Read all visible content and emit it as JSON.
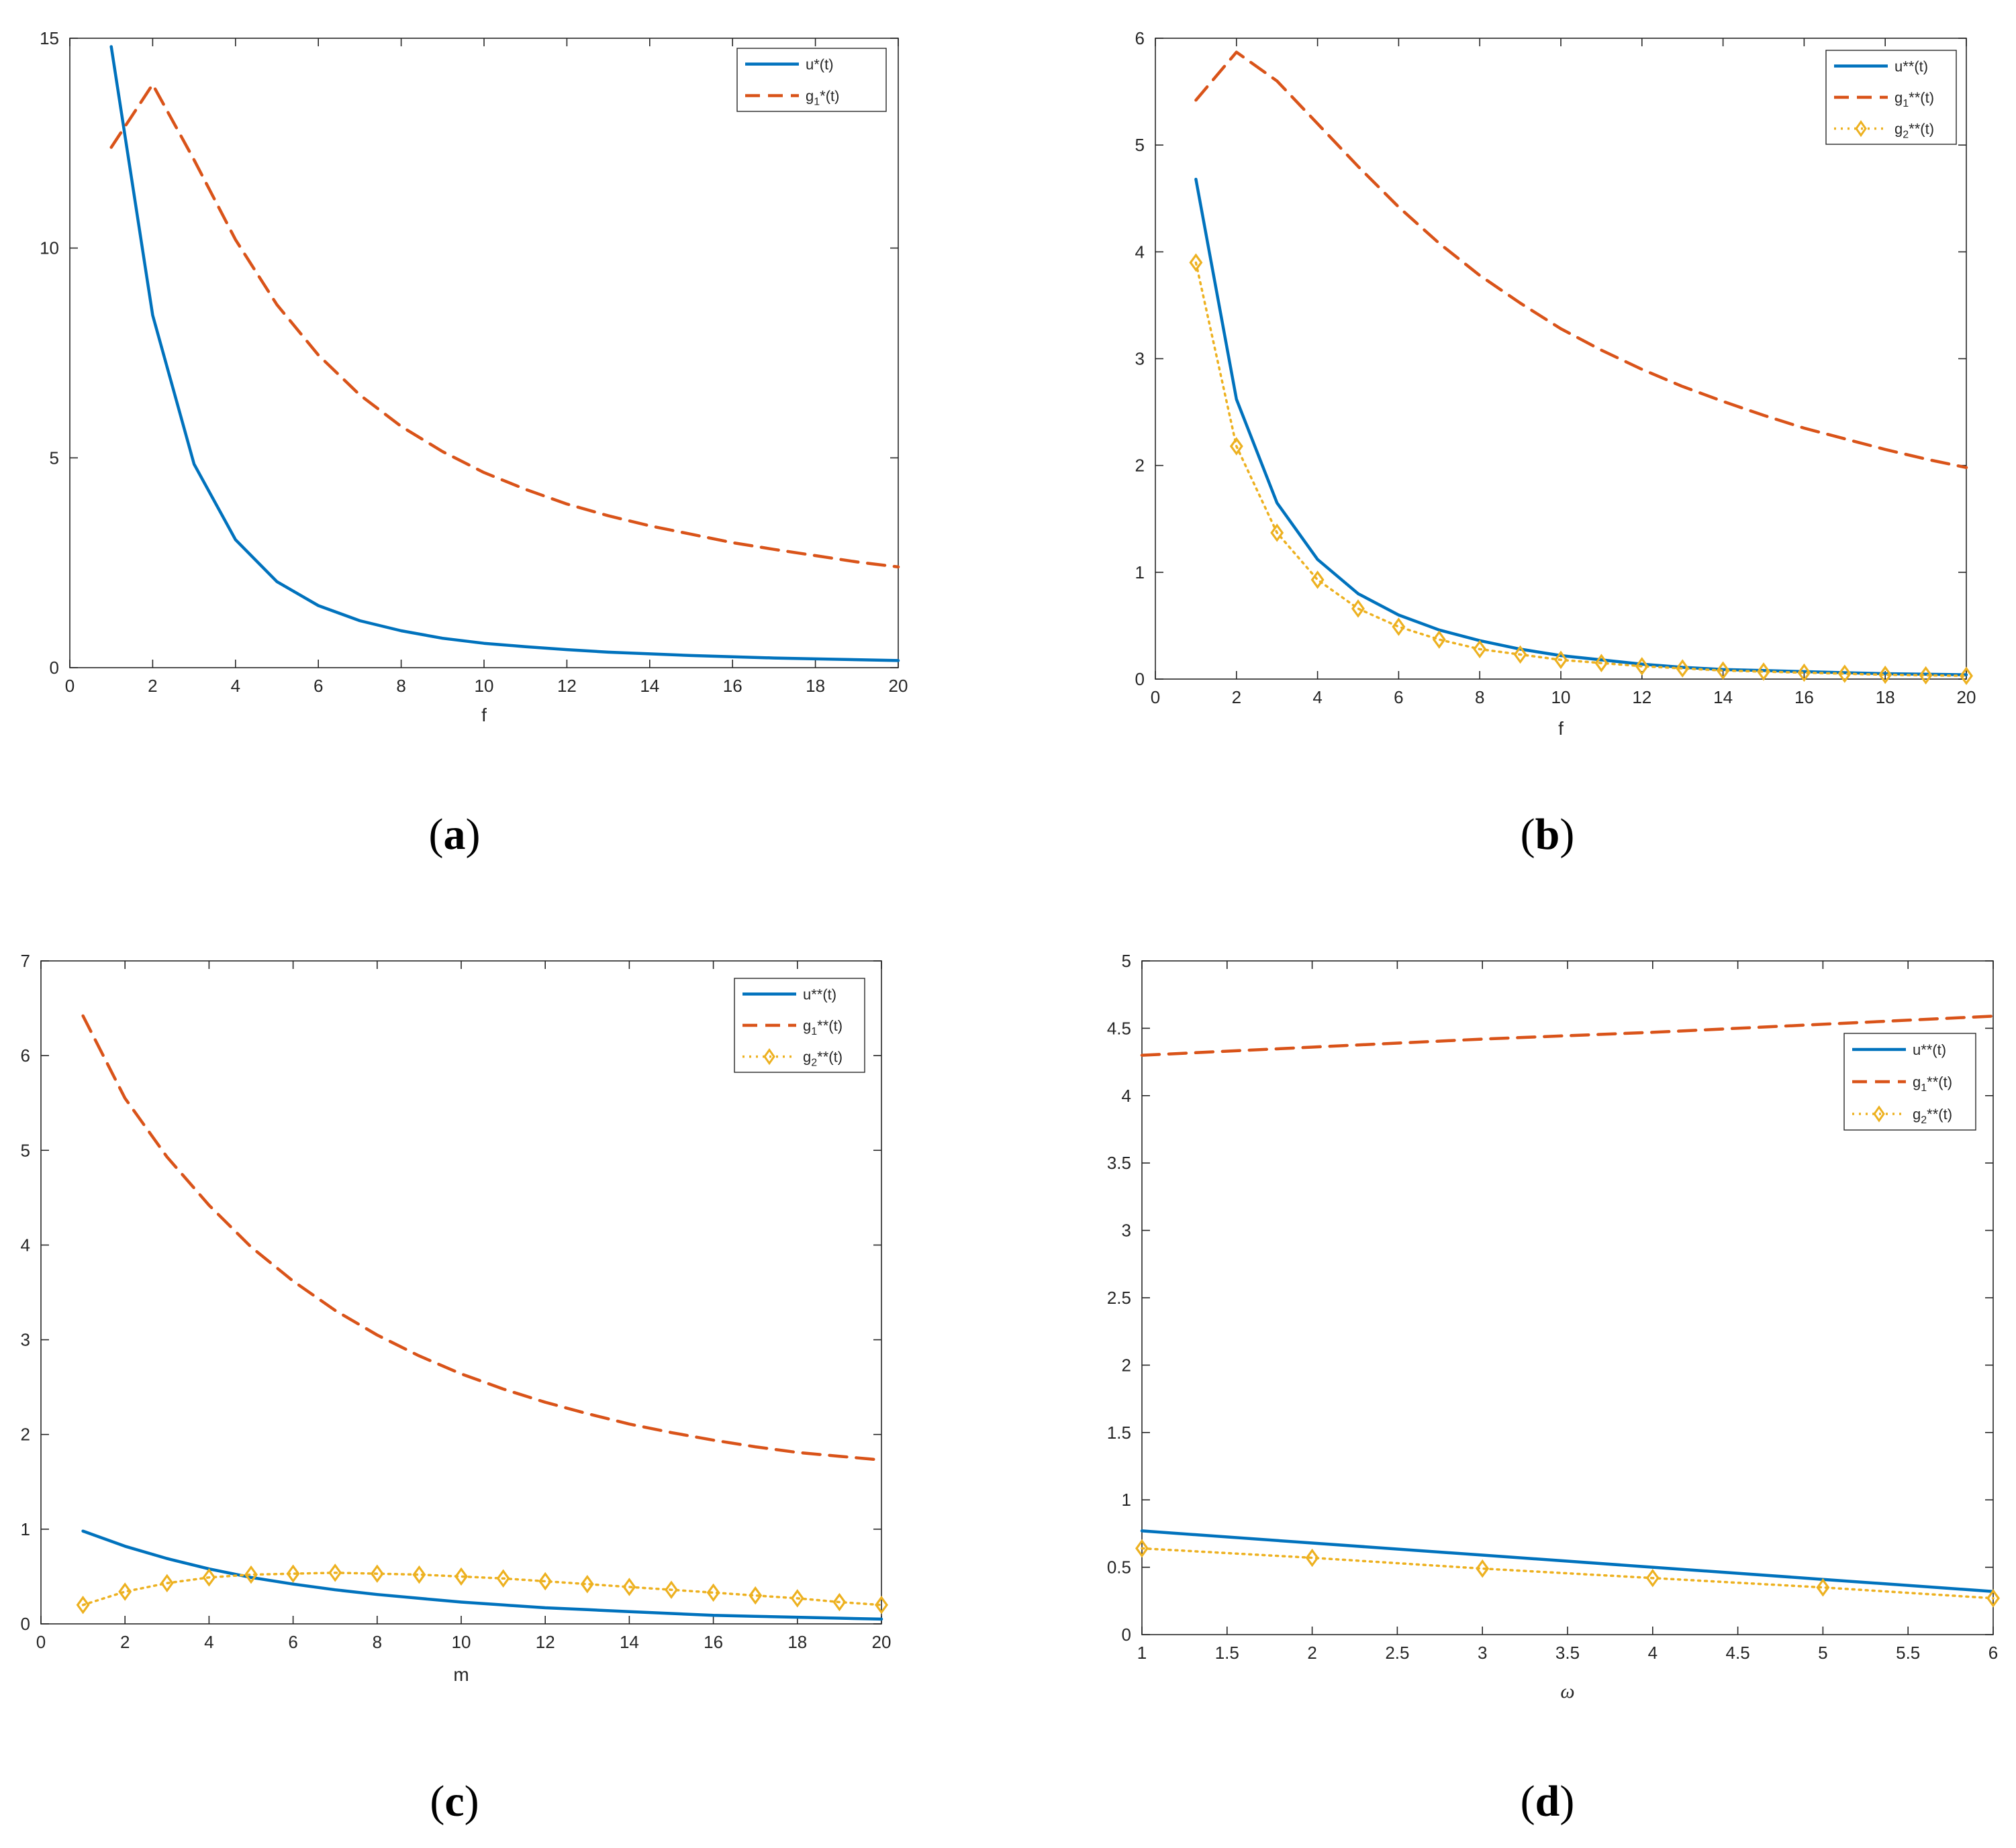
{
  "colors": {
    "u": "#0072BD",
    "g1": "#D95319",
    "g2": "#EDB120",
    "axis": "#262626"
  },
  "chart_data": [
    {
      "id": "a",
      "caption": {
        "open": "(",
        "letter": "a",
        "close": ")"
      },
      "type": "line",
      "xlabel": "f",
      "xlabel_italic": false,
      "xlim": [
        0,
        20
      ],
      "ylim": [
        0,
        15
      ],
      "xticks": [
        0,
        2,
        4,
        6,
        8,
        10,
        12,
        14,
        16,
        18,
        20
      ],
      "yticks": [
        0,
        5,
        10,
        15
      ],
      "legend_position": "top-right",
      "series": [
        {
          "key": "u",
          "name": "u*(t)",
          "style": "solid",
          "marker": "none",
          "x": [
            1,
            2,
            3,
            4,
            5,
            6,
            7,
            8,
            9,
            10,
            11,
            12,
            13,
            14,
            15,
            16,
            17,
            18,
            19,
            20
          ],
          "y": [
            14.8,
            8.4,
            4.85,
            3.05,
            2.05,
            1.48,
            1.12,
            0.88,
            0.7,
            0.58,
            0.5,
            0.43,
            0.37,
            0.33,
            0.29,
            0.26,
            0.23,
            0.21,
            0.19,
            0.17
          ]
        },
        {
          "key": "g1",
          "name": "g1*(t)",
          "sub": "1",
          "style": "dashed",
          "marker": "none",
          "x": [
            1,
            2,
            3,
            4,
            5,
            6,
            7,
            8,
            9,
            10,
            11,
            12,
            13,
            14,
            15,
            16,
            17,
            18,
            19,
            20
          ],
          "y": [
            12.4,
            13.9,
            12.1,
            10.2,
            8.65,
            7.45,
            6.5,
            5.75,
            5.15,
            4.65,
            4.25,
            3.9,
            3.62,
            3.38,
            3.18,
            2.98,
            2.82,
            2.67,
            2.52,
            2.4
          ]
        }
      ]
    },
    {
      "id": "b",
      "caption": {
        "open": "(",
        "letter": "b",
        "close": ")"
      },
      "type": "line",
      "xlabel": "f",
      "xlabel_italic": false,
      "xlim": [
        0,
        20
      ],
      "ylim": [
        0,
        6
      ],
      "xticks": [
        0,
        2,
        4,
        6,
        8,
        10,
        12,
        14,
        16,
        18,
        20
      ],
      "yticks": [
        0,
        1,
        2,
        3,
        4,
        5,
        6
      ],
      "legend_position": "top-right",
      "series": [
        {
          "key": "u",
          "name": "u**(t)",
          "style": "solid",
          "marker": "none",
          "x": [
            1,
            2,
            3,
            4,
            5,
            6,
            7,
            8,
            9,
            10,
            11,
            12,
            13,
            14,
            15,
            16,
            17,
            18,
            19,
            20
          ],
          "y": [
            4.68,
            2.62,
            1.65,
            1.12,
            0.8,
            0.6,
            0.46,
            0.36,
            0.28,
            0.22,
            0.18,
            0.14,
            0.11,
            0.09,
            0.08,
            0.07,
            0.06,
            0.05,
            0.045,
            0.04
          ]
        },
        {
          "key": "g1",
          "name": "g1**(t)",
          "sub": "1",
          "style": "dashed",
          "marker": "none",
          "x": [
            1,
            2,
            3,
            4,
            5,
            6,
            7,
            8,
            9,
            10,
            11,
            12,
            13,
            14,
            15,
            16,
            17,
            18,
            19,
            20
          ],
          "y": [
            5.42,
            5.87,
            5.6,
            5.2,
            4.8,
            4.42,
            4.08,
            3.78,
            3.52,
            3.28,
            3.08,
            2.9,
            2.74,
            2.6,
            2.47,
            2.35,
            2.25,
            2.15,
            2.06,
            1.98
          ]
        },
        {
          "key": "g2",
          "name": "g2**(t)",
          "sub": "2",
          "style": "dotted",
          "marker": "diamond",
          "x": [
            1,
            2,
            3,
            4,
            5,
            6,
            7,
            8,
            9,
            10,
            11,
            12,
            13,
            14,
            15,
            16,
            17,
            18,
            19,
            20
          ],
          "y": [
            3.9,
            2.18,
            1.37,
            0.93,
            0.66,
            0.49,
            0.37,
            0.28,
            0.23,
            0.18,
            0.15,
            0.12,
            0.1,
            0.08,
            0.07,
            0.06,
            0.05,
            0.04,
            0.035,
            0.03
          ]
        }
      ]
    },
    {
      "id": "c",
      "caption": {
        "open": "(",
        "letter": "c",
        "close": ")"
      },
      "type": "line",
      "xlabel": "m",
      "xlabel_italic": false,
      "xlim": [
        0,
        20
      ],
      "ylim": [
        0,
        7
      ],
      "xticks": [
        0,
        2,
        4,
        6,
        8,
        10,
        12,
        14,
        16,
        18,
        20
      ],
      "yticks": [
        0,
        1,
        2,
        3,
        4,
        5,
        6,
        7
      ],
      "legend_position": "top-right",
      "series": [
        {
          "key": "u",
          "name": "u**(t)",
          "style": "solid",
          "marker": "none",
          "x": [
            1,
            2,
            3,
            4,
            5,
            6,
            7,
            8,
            9,
            10,
            11,
            12,
            13,
            14,
            15,
            16,
            17,
            18,
            19,
            20
          ],
          "y": [
            0.98,
            0.82,
            0.69,
            0.58,
            0.49,
            0.42,
            0.36,
            0.31,
            0.27,
            0.23,
            0.2,
            0.17,
            0.15,
            0.13,
            0.11,
            0.09,
            0.08,
            0.07,
            0.06,
            0.05
          ]
        },
        {
          "key": "g1",
          "name": "g1**(t)",
          "sub": "1",
          "style": "dashed",
          "marker": "none",
          "x": [
            1,
            2,
            3,
            4,
            5,
            6,
            7,
            8,
            9,
            10,
            11,
            12,
            13,
            14,
            15,
            16,
            17,
            18,
            19,
            20
          ],
          "y": [
            6.42,
            5.55,
            4.93,
            4.42,
            3.98,
            3.62,
            3.31,
            3.05,
            2.83,
            2.64,
            2.48,
            2.34,
            2.22,
            2.11,
            2.02,
            1.94,
            1.87,
            1.81,
            1.77,
            1.73
          ]
        },
        {
          "key": "g2",
          "name": "g2**(t)",
          "sub": "2",
          "style": "dotted",
          "marker": "diamond",
          "x": [
            1,
            2,
            3,
            4,
            5,
            6,
            7,
            8,
            9,
            10,
            11,
            12,
            13,
            14,
            15,
            16,
            17,
            18,
            19,
            20
          ],
          "y": [
            0.2,
            0.34,
            0.43,
            0.49,
            0.52,
            0.53,
            0.54,
            0.53,
            0.52,
            0.5,
            0.48,
            0.45,
            0.42,
            0.39,
            0.36,
            0.33,
            0.3,
            0.27,
            0.23,
            0.2
          ]
        }
      ]
    },
    {
      "id": "d",
      "caption": {
        "open": "(",
        "letter": "d",
        "close": ")"
      },
      "type": "line",
      "xlabel": "ω",
      "xlabel_italic": true,
      "xlim": [
        1,
        6
      ],
      "ylim": [
        0,
        5
      ],
      "xticks": [
        1,
        1.5,
        2,
        2.5,
        3,
        3.5,
        4,
        4.5,
        5,
        5.5,
        6
      ],
      "yticks": [
        0,
        0.5,
        1,
        1.5,
        2,
        2.5,
        3,
        3.5,
        4,
        4.5,
        5
      ],
      "legend_position": "right",
      "series": [
        {
          "key": "u",
          "name": "u**(t)",
          "style": "solid",
          "marker": "none",
          "x": [
            1,
            2,
            3,
            4,
            5,
            6
          ],
          "y": [
            0.77,
            0.68,
            0.59,
            0.5,
            0.41,
            0.32
          ]
        },
        {
          "key": "g1",
          "name": "g1**(t)",
          "sub": "1",
          "style": "dashed",
          "marker": "none",
          "x": [
            1,
            2,
            3,
            4,
            5,
            6
          ],
          "y": [
            4.3,
            4.36,
            4.42,
            4.47,
            4.53,
            4.59
          ]
        },
        {
          "key": "g2",
          "name": "g2**(t)",
          "sub": "2",
          "style": "dotted",
          "marker": "diamond",
          "x": [
            1,
            2,
            3,
            4,
            5,
            6
          ],
          "y": [
            0.64,
            0.57,
            0.49,
            0.42,
            0.35,
            0.27
          ]
        }
      ]
    }
  ]
}
